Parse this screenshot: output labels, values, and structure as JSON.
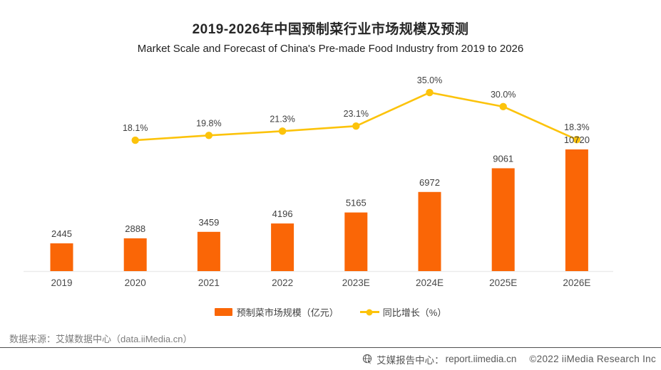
{
  "header": {
    "title": "2019-2026年中国预制菜行业市场规模及预测",
    "subtitle": "Market Scale and Forecast of China's Pre-made Food Industry from 2019 to 2026"
  },
  "chart_data": {
    "type": "bar",
    "categories": [
      "2019",
      "2020",
      "2021",
      "2022",
      "2023E",
      "2024E",
      "2025E",
      "2026E"
    ],
    "series": [
      {
        "name": "预制菜市场规模（亿元）",
        "type": "bar",
        "unit": "亿元",
        "color": "#FA6606",
        "values": [
          2445,
          2888,
          3459,
          4196,
          5165,
          6972,
          9061,
          10720
        ]
      },
      {
        "name": "同比增长（%）",
        "type": "line",
        "unit": "%",
        "color": "#FCC30B",
        "values": [
          null,
          18.1,
          19.8,
          21.3,
          23.1,
          35.0,
          30.0,
          18.3
        ]
      }
    ],
    "title": "2019-2026年中国预制菜行业市场规模及预测",
    "xlabel": "",
    "ylabel": "",
    "ylim_bar": [
      0,
      10720
    ],
    "grid": false,
    "y_axis_visible": false,
    "legend_position": "bottom"
  },
  "legend": {
    "items": [
      {
        "label": "预制菜市场规模（亿元）",
        "swatch": "bar",
        "color": "#FA6606"
      },
      {
        "label": "同比增长（%）",
        "swatch": "line",
        "color": "#FCC30B"
      }
    ]
  },
  "source": {
    "text": "数据来源：艾媒数据中心（data.iiMedia.cn）"
  },
  "footer": {
    "brand": "艾媒报告中心：",
    "url": "report.iimedia.cn",
    "copyright": "©2022  iiMedia Research Inc"
  },
  "colors": {
    "bar": "#FA6606",
    "line": "#FCC30B",
    "axis_line": "#ebebeb",
    "label_text": "#3f3f3f"
  }
}
